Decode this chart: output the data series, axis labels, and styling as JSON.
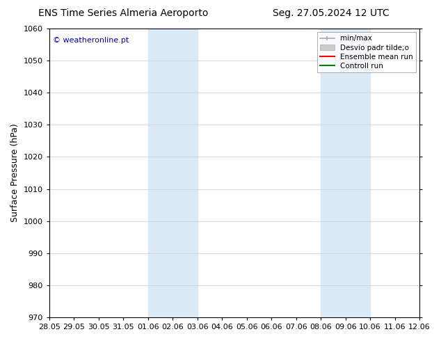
{
  "title_left": "ENS Time Series Almeria Aeroporto",
  "title_right": "Seg. 27.05.2024 12 UTC",
  "ylabel": "Surface Pressure (hPa)",
  "ylim": [
    970,
    1060
  ],
  "yticks": [
    970,
    980,
    990,
    1000,
    1010,
    1020,
    1030,
    1040,
    1050,
    1060
  ],
  "xtick_labels": [
    "28.05",
    "29.05",
    "30.05",
    "31.05",
    "01.06",
    "02.06",
    "03.06",
    "04.06",
    "05.06",
    "06.06",
    "07.06",
    "08.06",
    "09.06",
    "10.06",
    "11.06",
    "12.06"
  ],
  "watermark": "© weatheronline.pt",
  "watermark_color": "#0000cc",
  "shaded_bands": [
    {
      "x_start": "01.06",
      "x_end": "03.06",
      "color": "#daeaf7"
    },
    {
      "x_start": "08.06",
      "x_end": "10.06",
      "color": "#daeaf7"
    }
  ],
  "legend_entries": [
    {
      "label": "min/max",
      "color": "#aaaaaa",
      "type": "errorbar"
    },
    {
      "label": "Desvio padr tilde;o",
      "color": "#cccccc",
      "type": "fill"
    },
    {
      "label": "Ensemble mean run",
      "color": "#ff0000",
      "type": "line"
    },
    {
      "label": "Controll run",
      "color": "#008000",
      "type": "line"
    }
  ],
  "bg_color": "#ffffff",
  "grid_color": "#cccccc",
  "title_fontsize": 10,
  "label_fontsize": 9,
  "tick_fontsize": 8,
  "watermark_fontsize": 8
}
